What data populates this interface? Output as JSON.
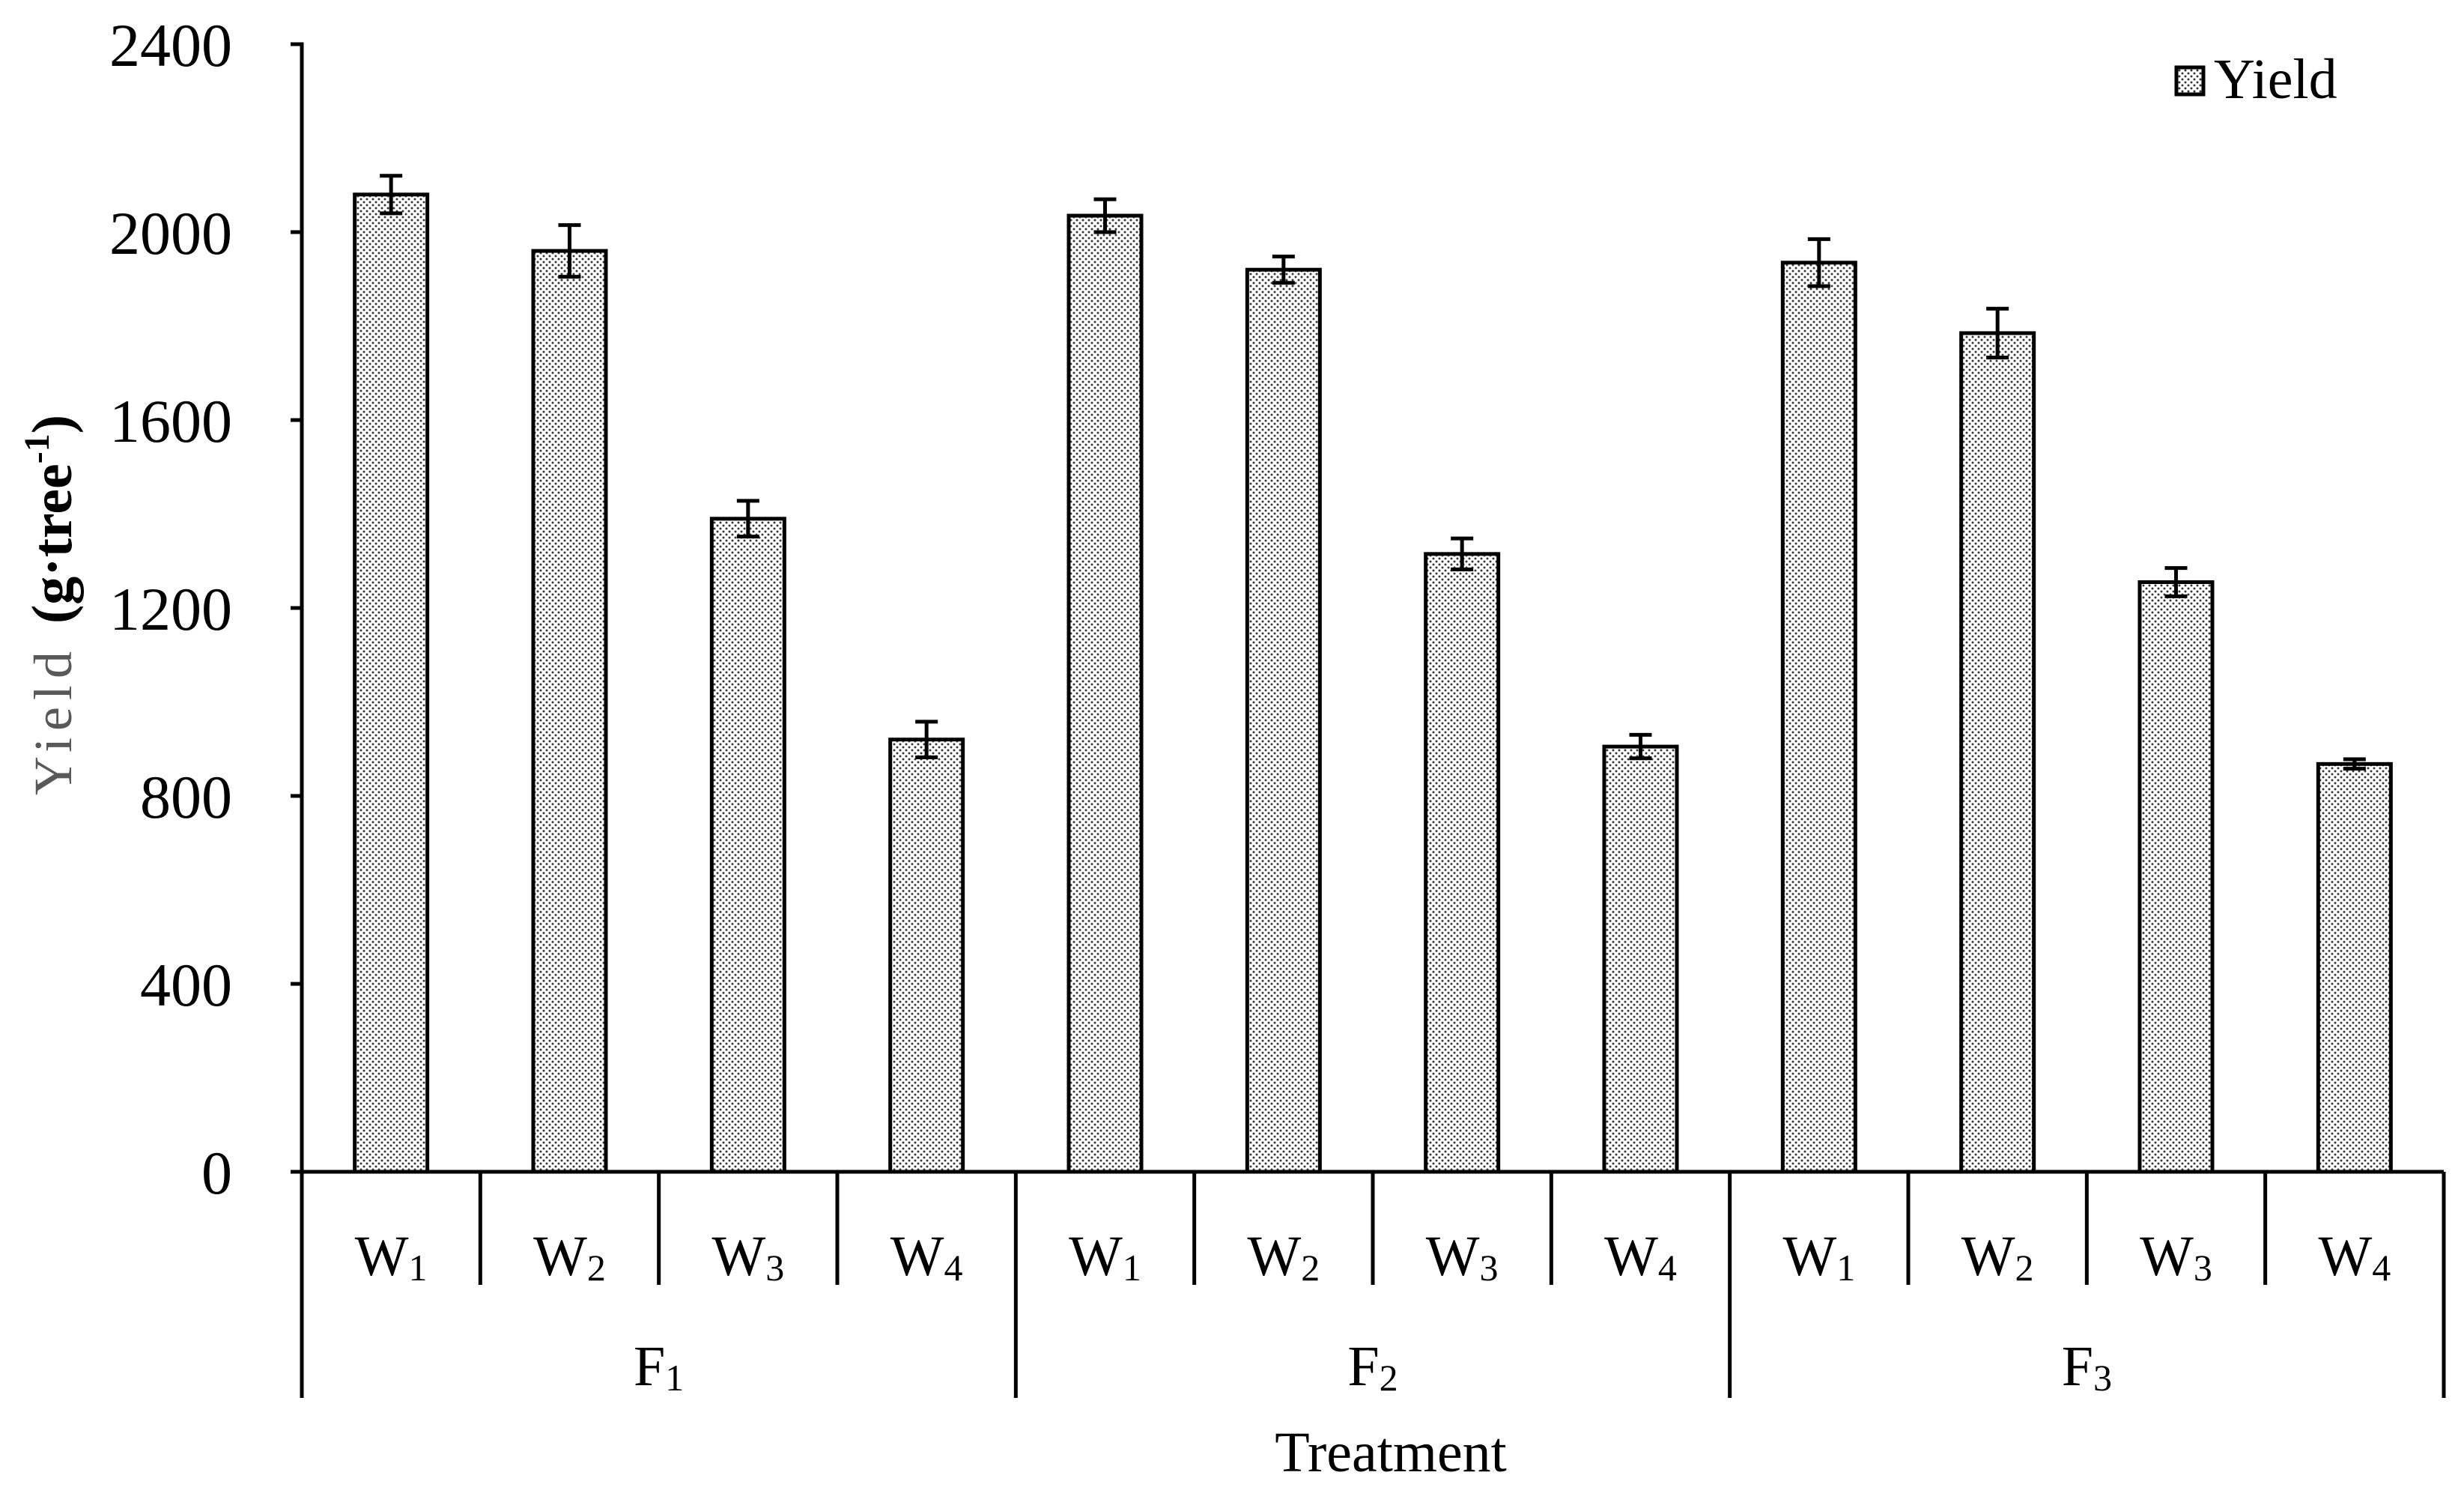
{
  "colors": {
    "axis": "#000000",
    "bar_edge": "#000000",
    "bar_background": "#ffffff",
    "bar_dots": "#3a3a3a",
    "ylabel_text": "#595959"
  },
  "chart_data": {
    "type": "bar",
    "title": "",
    "xlabel": "Treatment",
    "ylabel": {
      "text": "Yield",
      "unit": "(g·tree",
      "unit_sup": "-1",
      "unit_close": ")"
    },
    "ylim": [
      0,
      2400
    ],
    "yticks": [
      0,
      400,
      800,
      1200,
      1600,
      2000,
      2400
    ],
    "grid": false,
    "legend_position": "top-right",
    "groups": [
      {
        "label": "F1",
        "categories": [
          "W1",
          "W2",
          "W3",
          "W4"
        ]
      },
      {
        "label": "F2",
        "categories": [
          "W1",
          "W2",
          "W3",
          "W4"
        ]
      },
      {
        "label": "F3",
        "categories": [
          "W1",
          "W2",
          "W3",
          "W4"
        ]
      }
    ],
    "series": [
      {
        "name": "Yield",
        "values": [
          2080,
          1960,
          1390,
          920,
          2035,
          1920,
          1315,
          905,
          1935,
          1785,
          1255,
          868
        ],
        "errors": [
          40,
          55,
          38,
          38,
          35,
          28,
          33,
          25,
          50,
          52,
          30,
          10
        ]
      }
    ]
  }
}
